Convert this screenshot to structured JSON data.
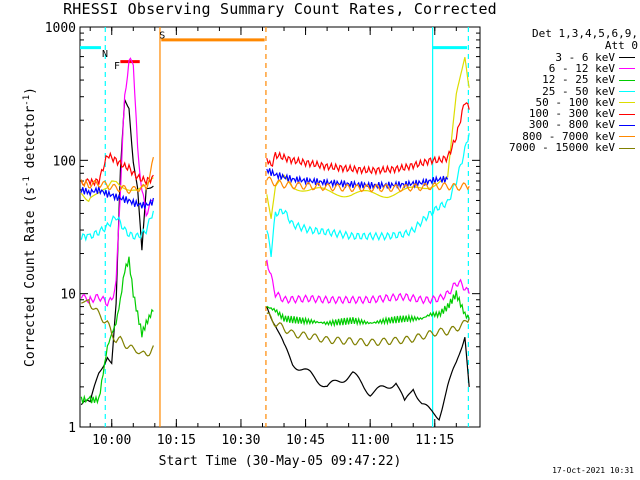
{
  "chart_data": {
    "type": "line",
    "title": "RHESSI Observing Summary Count Rates, Corrected",
    "xlabel": "Start Time (30-May-05 09:47:22)",
    "ylabel": "Corrected Count Rate (s",
    "ylabel_sup1": "-1",
    "ylabel_mid": " detector",
    "ylabel_sup2": "-1",
    "ylabel_end": ")",
    "yscale": "log",
    "ylim": [
      1,
      1000
    ],
    "xlim_min": [
      -7.37,
      65.5
    ],
    "x_ticks": [
      {
        "v": 0,
        "label": "10:00"
      },
      {
        "v": 15,
        "label": "10:15"
      },
      {
        "v": 30,
        "label": "10:30"
      },
      {
        "v": 45,
        "label": "10:45"
      },
      {
        "v": 60,
        "label": "11:00"
      },
      {
        "v": 75,
        "label": "11:15"
      }
    ],
    "y_ticks": [
      {
        "v": 1,
        "label": "1"
      },
      {
        "v": 10,
        "label": "10"
      },
      {
        "v": 100,
        "label": "100"
      },
      {
        "v": 1000,
        "label": "1000"
      }
    ],
    "legend_header": [
      "Det 1,3,4,5,6,9,",
      "Att 0"
    ],
    "legend_placement": "right",
    "series": [
      {
        "name": "3 - 6 keV",
        "color": "#000000",
        "x": [
          -7.4,
          -5,
          -3,
          -1,
          0,
          1,
          2,
          3,
          4,
          5,
          6,
          7,
          8,
          10,
          36,
          38,
          40,
          42,
          46,
          50,
          56,
          60,
          64,
          66,
          68,
          70,
          72,
          74,
          76,
          78,
          80,
          82,
          83
        ],
        "y": [
          1.5,
          1.5,
          2.5,
          3.5,
          3,
          8,
          80,
          290,
          260,
          100,
          60,
          20,
          60,
          70,
          8,
          6,
          4,
          3,
          2.5,
          2,
          2.5,
          1.8,
          2,
          2.2,
          1.5,
          2,
          1.5,
          1.3,
          1.2,
          2,
          3,
          5,
          2
        ]
      },
      {
        "name": "6 - 12 keV",
        "color": "#ff00ff",
        "x": [
          -7.4,
          -5,
          -3,
          -1,
          0,
          1,
          2,
          3,
          4,
          5,
          6,
          7,
          8,
          10,
          36,
          38,
          40,
          46,
          50,
          56,
          60,
          64,
          68,
          72,
          74,
          76,
          78,
          80,
          81,
          82,
          83
        ],
        "y": [
          9.5,
          9,
          9.5,
          8.5,
          9,
          12,
          60,
          300,
          550,
          550,
          120,
          60,
          40,
          55,
          18,
          10,
          9,
          9.2,
          9,
          9,
          9,
          9.3,
          9.5,
          9,
          9,
          9.2,
          10,
          12,
          12,
          11,
          10
        ]
      },
      {
        "name": "12 - 25 keV",
        "color": "#00cc00",
        "x": [
          -7.4,
          -5,
          -3,
          -1,
          0,
          1,
          2,
          3,
          4,
          5,
          6,
          7,
          8,
          10,
          36,
          38,
          40,
          46,
          50,
          56,
          60,
          64,
          68,
          72,
          74,
          76,
          78,
          80,
          82,
          83
        ],
        "y": [
          1.6,
          1.6,
          1.6,
          4,
          5,
          6,
          9,
          15,
          18,
          10,
          7,
          5,
          6,
          8,
          8,
          7.5,
          6.5,
          6.2,
          6,
          6.3,
          6,
          6.3,
          6.5,
          6.5,
          7,
          7,
          8,
          10,
          7,
          6.5
        ]
      },
      {
        "name": "25 - 50 keV",
        "color": "#00ffff",
        "x": [
          -7.4,
          -5,
          -3,
          -1,
          0,
          1,
          2,
          3,
          4,
          5,
          6,
          7,
          8,
          10,
          36,
          37,
          38,
          40,
          42,
          46,
          50,
          56,
          60,
          64,
          68,
          70,
          72,
          74,
          76,
          78,
          80,
          82,
          83
        ],
        "y": [
          27,
          27,
          29,
          32,
          35,
          38,
          34,
          30,
          28,
          27,
          27,
          28,
          30,
          45,
          30,
          20,
          40,
          42,
          33,
          30,
          29,
          27,
          27,
          27,
          28,
          30,
          35,
          40,
          45,
          48,
          70,
          120,
          160
        ]
      },
      {
        "name": "50 - 100 keV",
        "color": "#dddd00",
        "x": [
          -7.4,
          -5,
          -3,
          -1,
          0,
          1,
          2,
          3,
          4,
          5,
          6,
          7,
          8,
          10,
          36,
          37,
          38,
          40,
          42,
          46,
          50,
          56,
          60,
          64,
          68,
          70,
          72,
          74,
          76,
          78,
          80,
          82,
          83
        ],
        "y": [
          55,
          52,
          54,
          60,
          70,
          72,
          68,
          65,
          62,
          60,
          58,
          60,
          62,
          75,
          55,
          35,
          60,
          75,
          65,
          60,
          58,
          56,
          56,
          56,
          58,
          60,
          63,
          66,
          70,
          72,
          300,
          600,
          350
        ]
      },
      {
        "name": "100 - 300 keV",
        "color": "#ff0000",
        "x": [
          -7.4,
          -5,
          -3,
          -1,
          0,
          1,
          2,
          3,
          4,
          5,
          6,
          7,
          8,
          10,
          36,
          37,
          38,
          40,
          42,
          46,
          50,
          56,
          60,
          64,
          68,
          70,
          72,
          74,
          76,
          78,
          80,
          82,
          83
        ],
        "y": [
          70,
          68,
          70,
          110,
          105,
          100,
          95,
          90,
          88,
          80,
          75,
          72,
          70,
          75,
          105,
          90,
          110,
          105,
          100,
          95,
          90,
          86,
          84,
          85,
          88,
          92,
          95,
          100,
          100,
          105,
          150,
          280,
          240
        ]
      },
      {
        "name": "300 - 800 keV",
        "color": "#0000ff",
        "x": [
          -7.4,
          -5,
          -3,
          -1,
          0,
          1,
          2,
          3,
          4,
          5,
          6,
          7,
          8,
          10,
          36,
          38,
          40,
          42,
          46,
          50,
          56,
          60,
          64,
          68,
          70,
          72,
          74,
          76,
          78
        ],
        "y": [
          60,
          58,
          60,
          56,
          55,
          53,
          52,
          51,
          50,
          48,
          47,
          46,
          46,
          50,
          85,
          78,
          75,
          72,
          70,
          68,
          66,
          65,
          65,
          66,
          67,
          68,
          70,
          72,
          72
        ]
      },
      {
        "name": "800 - 7000 keV",
        "color": "#ff8800",
        "x": [
          -7.4,
          -5,
          -3,
          -1,
          0,
          1,
          2,
          3,
          4,
          5,
          6,
          7,
          8,
          10,
          36,
          38,
          40,
          42,
          46,
          50,
          56,
          60,
          64,
          68,
          70,
          72,
          74,
          76,
          78,
          80,
          82,
          83
        ],
        "y": [
          68,
          66,
          67,
          65,
          63,
          62,
          62,
          61,
          60,
          60,
          62,
          62,
          62,
          110,
          72,
          68,
          66,
          65,
          64,
          63,
          62,
          62,
          62,
          62,
          63,
          63,
          64,
          64,
          64,
          63,
          64,
          64
        ]
      },
      {
        "name": "7000 - 15000 keV",
        "color": "#808000",
        "x": [
          -7.4,
          -5,
          -3,
          -1,
          0,
          1,
          2,
          3,
          4,
          5,
          6,
          7,
          8,
          10,
          36,
          38,
          40,
          42,
          46,
          50,
          56,
          60,
          64,
          68,
          70,
          72,
          74,
          76,
          78,
          80,
          82,
          83
        ],
        "y": [
          9,
          8.5,
          7,
          6,
          5,
          4.5,
          4.5,
          4.2,
          4,
          3.8,
          3.8,
          3.5,
          3.5,
          4,
          7,
          6,
          5.5,
          5,
          4.8,
          4.5,
          4.4,
          4.3,
          4.4,
          4.5,
          4.6,
          4.8,
          5,
          5.2,
          5.2,
          5.5,
          6,
          6.5
        ]
      }
    ],
    "markers": [
      {
        "text": "N",
        "color": "#00ffff"
      },
      {
        "text": "F",
        "color": "#ff0000"
      },
      {
        "text": "S",
        "color": "#ff8800"
      }
    ],
    "bars": [
      {
        "color": "#00ffff",
        "x0": -12,
        "x1": -2.5,
        "y": 700
      },
      {
        "color": "#ff0000",
        "x0": 2,
        "x1": 6.5,
        "y": 550
      },
      {
        "color": "#ff8800",
        "x0": 11.5,
        "x1": 35.5,
        "y": 800
      },
      {
        "color": "#00ffff",
        "x0": 74.5,
        "x1": 82.5,
        "y": 700
      }
    ],
    "vlines": [
      {
        "x": -12,
        "color": "#00ffff",
        "dash": false
      },
      {
        "x": -1.5,
        "color": "#00ffff",
        "dash": true
      },
      {
        "x": 11.2,
        "color": "#ff8800",
        "dash": false
      },
      {
        "x": 35.8,
        "color": "#ff8800",
        "dash": true
      },
      {
        "x": 74.5,
        "color": "#00ffff",
        "dash": false
      },
      {
        "x": 82.8,
        "color": "#00ffff",
        "dash": true
      }
    ],
    "grid": false
  },
  "footer": {
    "timestamp": "17-Oct-2021 10:31"
  }
}
